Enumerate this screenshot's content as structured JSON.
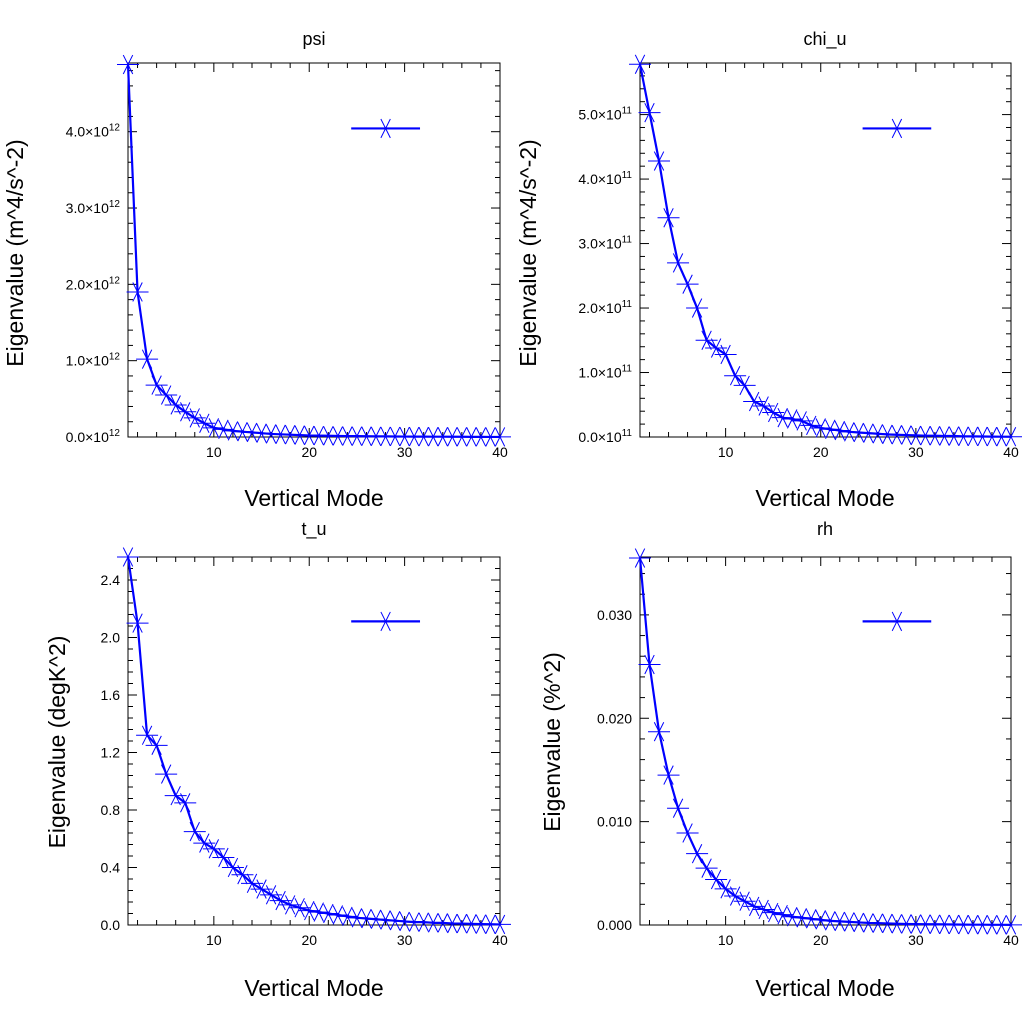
{
  "colors": {
    "series": "#0000ff",
    "axis": "#000000",
    "background": "#ffffff"
  },
  "chart_data": [
    {
      "type": "line",
      "title": "psi",
      "xlabel": "Vertical Mode",
      "ylabel": "Eigenvalue (m^4/s^-2)",
      "xlim": [
        1,
        40
      ],
      "ylim": [
        0,
        4.9
      ],
      "x_ticks": [
        "10",
        "20",
        "30",
        "40"
      ],
      "y_tick_values": [
        0,
        1,
        2,
        3,
        4
      ],
      "y_tick_mantissas": [
        "0.0",
        "1.0",
        "2.0",
        "3.0",
        "4.0"
      ],
      "y_tick_exponent": "12",
      "marker": "asterisk",
      "legend": "top-right",
      "series": [
        {
          "name": "",
          "x": [
            1,
            2,
            3,
            4,
            5,
            6,
            7,
            8,
            9,
            10,
            11,
            12,
            13,
            14,
            15,
            16,
            17,
            18,
            19,
            20,
            21,
            22,
            23,
            24,
            25,
            26,
            27,
            28,
            29,
            30,
            31,
            32,
            33,
            34,
            35,
            36,
            37,
            38,
            39,
            40
          ],
          "values": [
            4.88,
            1.9,
            1.02,
            0.68,
            0.55,
            0.42,
            0.33,
            0.25,
            0.18,
            0.12,
            0.1,
            0.08,
            0.07,
            0.06,
            0.05,
            0.04,
            0.035,
            0.03,
            0.025,
            0.02,
            0.018,
            0.016,
            0.014,
            0.012,
            0.011,
            0.01,
            0.009,
            0.008,
            0.007,
            0.006,
            0.005,
            0.005,
            0.004,
            0.004,
            0.003,
            0.003,
            0.002,
            0.002,
            0.001,
            0.001
          ]
        }
      ]
    },
    {
      "type": "line",
      "title": "chi_u",
      "xlabel": "Vertical Mode",
      "ylabel": "Eigenvalue (m^4/s^-2)",
      "xlim": [
        1,
        40
      ],
      "ylim": [
        0,
        5.8
      ],
      "x_ticks": [
        "10",
        "20",
        "30",
        "40"
      ],
      "y_tick_values": [
        0,
        1,
        2,
        3,
        4,
        5
      ],
      "y_tick_mantissas": [
        "0.0",
        "1.0",
        "2.0",
        "3.0",
        "4.0",
        "5.0"
      ],
      "y_tick_exponent": "11",
      "marker": "asterisk",
      "legend": "top-right",
      "series": [
        {
          "name": "",
          "x": [
            1,
            2,
            3,
            4,
            5,
            6,
            7,
            8,
            9,
            10,
            11,
            12,
            13,
            14,
            15,
            16,
            17,
            18,
            19,
            20,
            21,
            22,
            23,
            24,
            25,
            26,
            27,
            28,
            29,
            30,
            31,
            32,
            33,
            34,
            35,
            36,
            37,
            38,
            39,
            40
          ],
          "values": [
            5.78,
            5.03,
            4.28,
            3.4,
            2.7,
            2.37,
            2.0,
            1.5,
            1.38,
            1.28,
            0.95,
            0.8,
            0.55,
            0.48,
            0.38,
            0.3,
            0.28,
            0.25,
            0.18,
            0.14,
            0.12,
            0.1,
            0.08,
            0.07,
            0.06,
            0.05,
            0.04,
            0.035,
            0.03,
            0.025,
            0.02,
            0.02,
            0.015,
            0.015,
            0.01,
            0.01,
            0.008,
            0.006,
            0.005,
            0.004
          ]
        }
      ]
    },
    {
      "type": "line",
      "title": "t_u",
      "xlabel": "Vertical Mode",
      "ylabel": "Eigenvalue (degK^2)",
      "xlim": [
        1,
        40
      ],
      "ylim": [
        0,
        2.56
      ],
      "x_ticks": [
        "10",
        "20",
        "30",
        "40"
      ],
      "y_tick_values": [
        0,
        0.4,
        0.8,
        1.2,
        1.6,
        2.0,
        2.4
      ],
      "y_tick_labels": [
        "0.0",
        "0.4",
        "0.8",
        "1.2",
        "1.6",
        "2.0",
        "2.4"
      ],
      "marker": "asterisk",
      "legend": "top-right",
      "series": [
        {
          "name": "",
          "x": [
            1,
            2,
            3,
            4,
            5,
            6,
            7,
            8,
            9,
            10,
            11,
            12,
            13,
            14,
            15,
            16,
            17,
            18,
            19,
            20,
            21,
            22,
            23,
            24,
            25,
            26,
            27,
            28,
            29,
            30,
            31,
            32,
            33,
            34,
            35,
            36,
            37,
            38,
            39,
            40
          ],
          "values": [
            2.56,
            2.1,
            1.32,
            1.25,
            1.05,
            0.9,
            0.85,
            0.65,
            0.57,
            0.53,
            0.47,
            0.4,
            0.35,
            0.29,
            0.25,
            0.21,
            0.17,
            0.14,
            0.12,
            0.1,
            0.09,
            0.08,
            0.07,
            0.06,
            0.05,
            0.045,
            0.04,
            0.035,
            0.03,
            0.025,
            0.02,
            0.02,
            0.015,
            0.015,
            0.01,
            0.01,
            0.008,
            0.006,
            0.005,
            0.004
          ]
        }
      ]
    },
    {
      "type": "line",
      "title": "rh",
      "xlabel": "Vertical Mode",
      "ylabel": "Eigenvalue (%^2)",
      "xlim": [
        1,
        40
      ],
      "ylim": [
        0,
        0.0356
      ],
      "x_ticks": [
        "10",
        "20",
        "30",
        "40"
      ],
      "y_tick_values": [
        0,
        0.01,
        0.02,
        0.03
      ],
      "y_tick_labels": [
        "0.000",
        "0.010",
        "0.020",
        "0.030"
      ],
      "marker": "asterisk",
      "legend": "top-right",
      "series": [
        {
          "name": "",
          "x": [
            1,
            2,
            3,
            4,
            5,
            6,
            7,
            8,
            9,
            10,
            11,
            12,
            13,
            14,
            15,
            16,
            17,
            18,
            19,
            20,
            21,
            22,
            23,
            24,
            25,
            26,
            27,
            28,
            29,
            30,
            31,
            32,
            33,
            34,
            35,
            36,
            37,
            38,
            39,
            40
          ],
          "values": [
            0.0355,
            0.0252,
            0.0187,
            0.0145,
            0.0113,
            0.0089,
            0.0069,
            0.0055,
            0.0044,
            0.0035,
            0.0028,
            0.0023,
            0.0018,
            0.0015,
            0.0012,
            0.001,
            0.0008,
            0.0007,
            0.0006,
            0.0005,
            0.0004,
            0.00035,
            0.0003,
            0.00025,
            0.0002,
            0.00018,
            0.00015,
            0.00012,
            0.0001,
            9e-05,
            8e-05,
            7e-05,
            6e-05,
            5e-05,
            4e-05,
            3e-05,
            3e-05,
            2e-05,
            2e-05,
            1e-05
          ]
        }
      ]
    }
  ]
}
